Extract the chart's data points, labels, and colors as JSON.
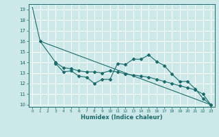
{
  "bg_color": "#cce8e8",
  "grid_color": "#ffffff",
  "line_color": "#1a6b6b",
  "xlabel": "Humidex (Indice chaleur)",
  "xlim": [
    -0.5,
    23.5
  ],
  "ylim": [
    9.8,
    19.5
  ],
  "yticks": [
    10,
    11,
    12,
    13,
    14,
    15,
    16,
    17,
    18,
    19
  ],
  "xticks": [
    0,
    1,
    2,
    3,
    4,
    5,
    6,
    7,
    8,
    9,
    10,
    11,
    12,
    13,
    14,
    15,
    16,
    17,
    18,
    19,
    20,
    21,
    22,
    23
  ],
  "line1_x": [
    0,
    1,
    23
  ],
  "line1_y": [
    19.2,
    16.0,
    10.0
  ],
  "line2_x": [
    3,
    4,
    5,
    6,
    7,
    8,
    9,
    10,
    11,
    12,
    13,
    14,
    15,
    16,
    17,
    18,
    19,
    20,
    21,
    22,
    23
  ],
  "line2_y": [
    13.9,
    13.1,
    13.2,
    12.7,
    12.6,
    12.0,
    12.4,
    12.4,
    13.9,
    13.8,
    14.3,
    14.3,
    14.7,
    14.1,
    13.7,
    12.9,
    12.2,
    12.2,
    11.5,
    10.6,
    10.0
  ],
  "line3_x": [
    1,
    3,
    4,
    5,
    6,
    7,
    8,
    9,
    10,
    11,
    12,
    13,
    14,
    15,
    16,
    17,
    18,
    19,
    20,
    21,
    22,
    23
  ],
  "line3_y": [
    16.0,
    14.0,
    13.5,
    13.4,
    13.2,
    13.1,
    13.1,
    13.0,
    13.2,
    13.1,
    12.9,
    12.8,
    12.7,
    12.6,
    12.4,
    12.2,
    12.0,
    11.8,
    11.6,
    11.4,
    11.0,
    10.0
  ]
}
